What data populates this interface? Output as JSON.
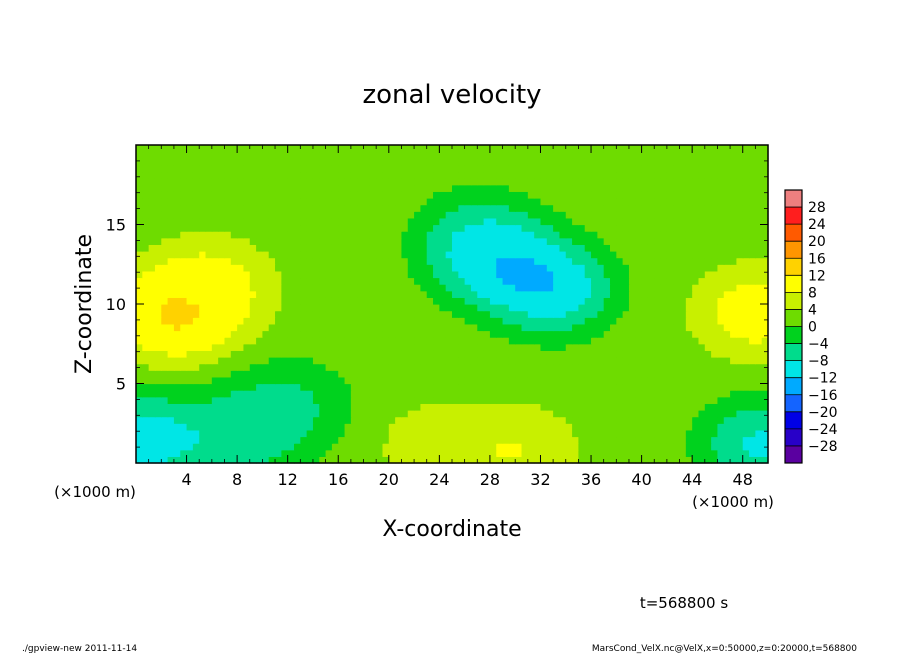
{
  "chart_data": {
    "type": "heatmap",
    "title": "zonal velocity",
    "xlabel": "X-coordinate",
    "ylabel": "Z-coordinate",
    "x_unit_label": "(×1000 m)",
    "x_unit_label_right": "(×1000 m)",
    "xlim": [
      0,
      50
    ],
    "ylim": [
      0,
      20
    ],
    "x_ticks": [
      4,
      8,
      12,
      16,
      20,
      24,
      28,
      32,
      36,
      40,
      44,
      48
    ],
    "y_ticks": [
      5,
      10,
      15
    ],
    "x_tick_labels": [
      "4",
      "8",
      "12",
      "16",
      "20",
      "24",
      "28",
      "32",
      "36",
      "40",
      "44",
      "48"
    ],
    "y_tick_labels": [
      "5",
      "10",
      "15"
    ],
    "colorbar": {
      "levels": [
        28,
        24,
        20,
        16,
        12,
        8,
        4,
        0,
        -4,
        -8,
        -12,
        -16,
        -20,
        -24,
        -28
      ],
      "labels": [
        "28",
        "24",
        "20",
        "16",
        "12",
        "8",
        "4",
        "0",
        "−4",
        "−8",
        "−12",
        "−16",
        "−20",
        "−24",
        "−28"
      ],
      "colors": [
        "#ee7f7f",
        "#ff1e1e",
        "#ff5a00",
        "#ff9600",
        "#ffd200",
        "#ffff00",
        "#c8f000",
        "#6edc00",
        "#00d21e",
        "#00dc8c",
        "#00e6e6",
        "#00aaff",
        "#1464ff",
        "#0000e6",
        "#2800c8",
        "#5a00a0"
      ]
    },
    "field": {
      "background_value": 2,
      "features": [
        {
          "x": 4,
          "z": 10,
          "value": 12
        },
        {
          "x": 3,
          "z": 9.2,
          "value": 14
        },
        {
          "x": 6,
          "z": 11.2,
          "value": 11
        },
        {
          "x": 49,
          "z": 9.5,
          "value": 13
        },
        {
          "x": 30,
          "z": 0.8,
          "value": 10
        },
        {
          "x": 24,
          "z": 1.0,
          "value": 8
        },
        {
          "x": 29,
          "z": 12.5,
          "value": -15
        },
        {
          "x": 33,
          "z": 11,
          "value": -15
        },
        {
          "x": 27,
          "z": 14,
          "value": -10
        },
        {
          "x": 1,
          "z": 1.5,
          "value": -14
        },
        {
          "x": 8,
          "z": 1.8,
          "value": -10
        },
        {
          "x": 12,
          "z": 3.5,
          "value": -7
        },
        {
          "x": 49.5,
          "z": 1.2,
          "value": -12
        }
      ]
    }
  },
  "footer": {
    "time_label": "t=568800 s",
    "left_note": "./gpview-new  2011-11-14",
    "right_note": "MarsCond_VelX.nc@VelX,x=0:50000,z=0:20000,t=568800"
  },
  "colors": {
    "frame": "#000000",
    "background": "#ffffff"
  }
}
